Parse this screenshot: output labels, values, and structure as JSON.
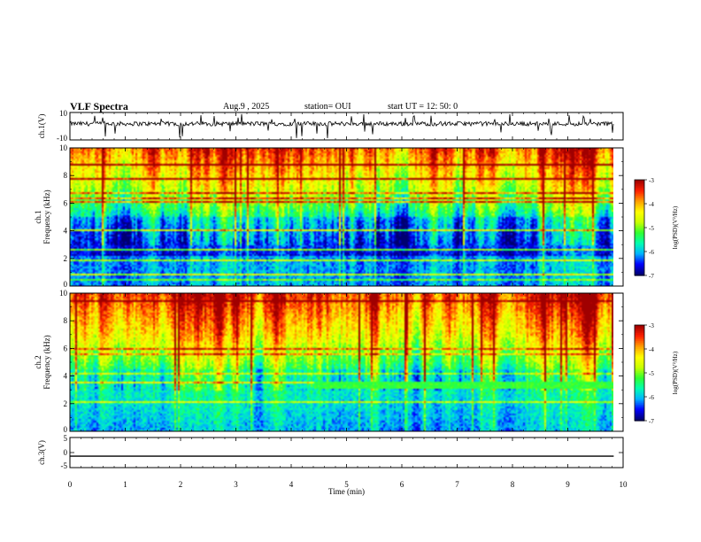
{
  "chart_data": {
    "type": "spectrogram",
    "title": "VLF Spectra",
    "date": "Aug.9 , 2025",
    "station_label": "station= OUI",
    "start_label": "start UT = 12: 50: 0",
    "x_axis": {
      "label": "Time (min)",
      "range": [
        0,
        10
      ],
      "ticks": [
        "0",
        "1",
        "2",
        "3",
        "4",
        "5",
        "6",
        "7",
        "8",
        "9",
        "10"
      ]
    },
    "panels": [
      {
        "name": "ch1-waveform",
        "type": "line",
        "ylabel": "ch.1(V)",
        "yrange": [
          -10,
          10
        ],
        "yticks": [
          "10",
          "-10"
        ],
        "data_end_min": 9.83
      },
      {
        "name": "ch1-spectrogram",
        "type": "heatmap",
        "ylabel_line1": "ch.1",
        "ylabel_line2": "Frequency (kHz)",
        "yrange": [
          0,
          10
        ],
        "yticks": [
          "0",
          "2",
          "4",
          "6",
          "8",
          "10"
        ],
        "data_end_min": 9.83,
        "colorbar": {
          "label": "log(PSD)(V²/Hz)",
          "range": [
            -7,
            -3
          ],
          "ticks": [
            "-3",
            "-4",
            "-5",
            "-6",
            "-7"
          ]
        }
      },
      {
        "name": "ch2-spectrogram",
        "type": "heatmap",
        "ylabel_line1": "ch.2",
        "ylabel_line2": "Frequency (kHz)",
        "yrange": [
          0,
          10
        ],
        "yticks": [
          "0",
          "2",
          "4",
          "6",
          "8",
          "10"
        ],
        "data_end_min": 9.83,
        "band_start_min": 4.4,
        "band_khz": [
          3.1,
          3.6
        ],
        "colorbar": {
          "label": "log(PSD)(V²/Hz)",
          "range": [
            -7,
            -3
          ],
          "ticks": [
            "-3",
            "-4",
            "-5",
            "-6",
            "-7"
          ]
        }
      },
      {
        "name": "ch3-waveform",
        "type": "line",
        "ylabel": "ch.3(V)",
        "yrange": [
          -5,
          5
        ],
        "yticks": [
          "5",
          "0",
          "-5"
        ],
        "constant_value": -1.2,
        "data_end_min": 9.83
      }
    ],
    "colormap": [
      "#000070",
      "#0000ff",
      "#00b4ff",
      "#00ffb0",
      "#30ff30",
      "#c8ff00",
      "#ffff00",
      "#ffa000",
      "#ff2000",
      "#a00000"
    ]
  }
}
